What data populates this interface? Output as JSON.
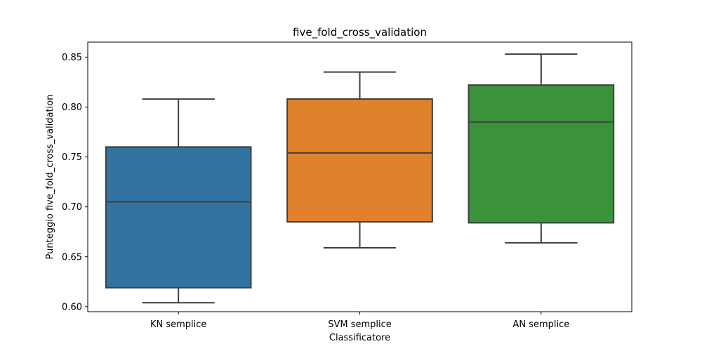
{
  "chart_data": {
    "type": "box",
    "title": "five_fold_cross_validation",
    "xlabel": "Classificatore",
    "ylabel": "Punteggio five_fold_cross_validation",
    "ylim": [
      0.595,
      0.865
    ],
    "yticks": [
      "0.60",
      "0.65",
      "0.70",
      "0.75",
      "0.80",
      "0.85"
    ],
    "grid": false,
    "categories": [
      "KN semplice",
      "SVM semplice",
      "AN semplice"
    ],
    "boxes": [
      {
        "category": "KN semplice",
        "whisker_low": 0.604,
        "q1": 0.619,
        "median": 0.705,
        "q3": 0.76,
        "whisker_high": 0.808,
        "color": "#3274a1"
      },
      {
        "category": "SVM semplice",
        "whisker_low": 0.659,
        "q1": 0.685,
        "median": 0.754,
        "q3": 0.808,
        "whisker_high": 0.835,
        "color": "#e1812c"
      },
      {
        "category": "AN semplice",
        "whisker_low": 0.664,
        "q1": 0.684,
        "median": 0.785,
        "q3": 0.822,
        "whisker_high": 0.853,
        "color": "#3a923a"
      }
    ],
    "line_color": "#3f3f3f"
  }
}
